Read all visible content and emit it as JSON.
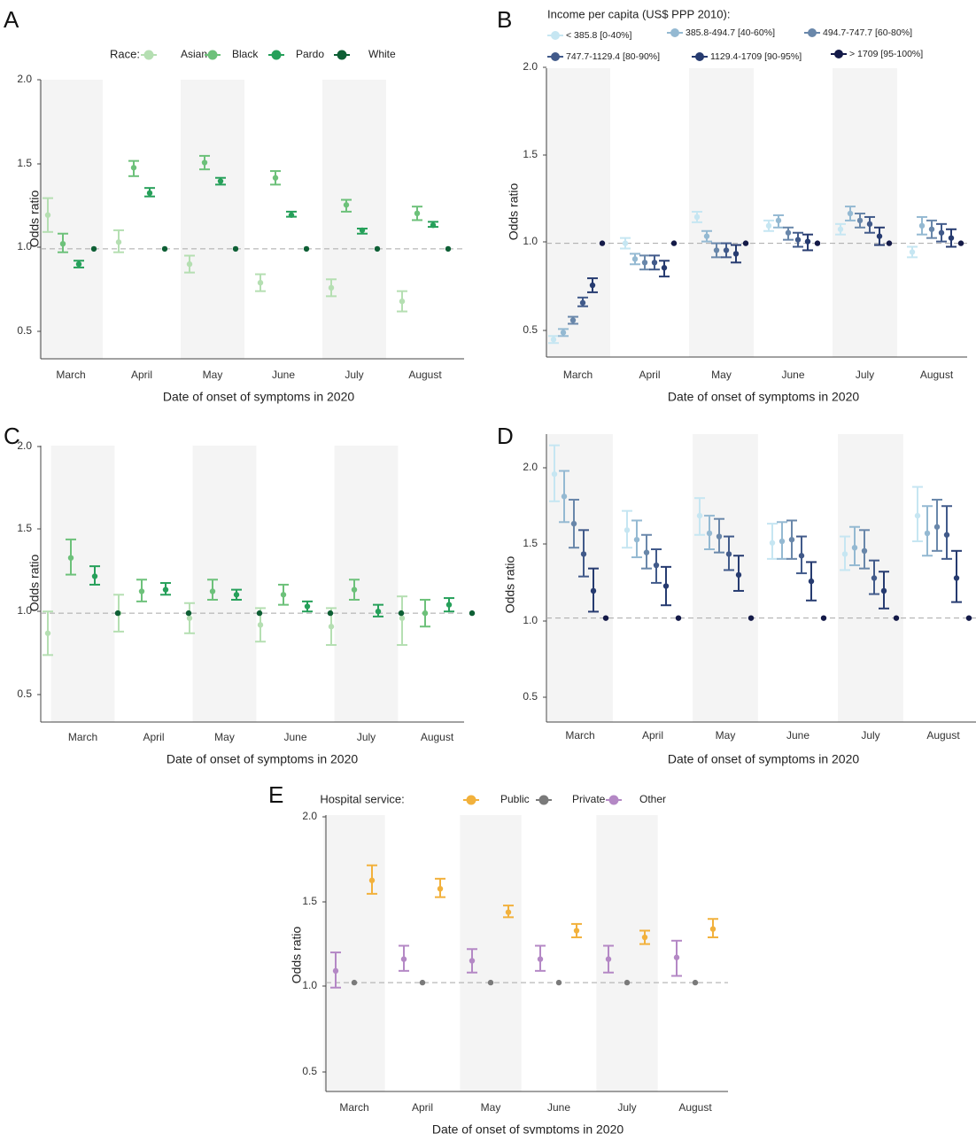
{
  "chart_data": [
    {
      "panel": "A",
      "type": "scatter",
      "xlabel": "Date of onset of symptoms in 2020",
      "ylabel": "Odds ratio",
      "categories": [
        "March",
        "April",
        "May",
        "June",
        "July",
        "August"
      ],
      "yticks": [
        "2.0",
        "1.5",
        "1.0",
        "0.5"
      ],
      "ylim": [
        0.35,
        2.0
      ],
      "reference_line": 1.0,
      "legend": {
        "title": "Race:",
        "position": "top"
      },
      "series": [
        {
          "name": "Asian",
          "color": "#b5dfb2",
          "values": [
            1.2,
            1.04,
            0.91,
            0.8,
            0.77,
            0.69
          ],
          "lower": [
            1.1,
            0.98,
            0.86,
            0.75,
            0.72,
            0.63
          ],
          "upper": [
            1.3,
            1.11,
            0.96,
            0.85,
            0.82,
            0.75
          ]
        },
        {
          "name": "Black",
          "color": "#6dc17a",
          "values": [
            1.03,
            1.48,
            1.51,
            1.42,
            1.26,
            1.21
          ],
          "lower": [
            0.98,
            1.43,
            1.47,
            1.38,
            1.22,
            1.17
          ],
          "upper": [
            1.09,
            1.52,
            1.55,
            1.46,
            1.29,
            1.25
          ]
        },
        {
          "name": "Pardo",
          "color": "#26a05a",
          "values": [
            0.91,
            1.33,
            1.4,
            1.2,
            1.11,
            1.14
          ],
          "lower": [
            0.89,
            1.31,
            1.38,
            1.19,
            1.09,
            1.13
          ],
          "upper": [
            0.93,
            1.36,
            1.42,
            1.22,
            1.12,
            1.16
          ]
        },
        {
          "name": "White",
          "color": "#0e5f35",
          "values": [
            1.0,
            1.0,
            1.0,
            1.0,
            1.0,
            1.0
          ],
          "lower": [
            1.0,
            1.0,
            1.0,
            1.0,
            1.0,
            1.0
          ],
          "upper": [
            1.0,
            1.0,
            1.0,
            1.0,
            1.0,
            1.0
          ]
        }
      ]
    },
    {
      "panel": "B",
      "type": "scatter",
      "xlabel": "Date of onset of symptoms in 2020",
      "ylabel": "Odds ratio",
      "categories": [
        "March",
        "April",
        "May",
        "June",
        "July",
        "August"
      ],
      "yticks": [
        "2.0",
        "1.5",
        "1.0",
        "0.5"
      ],
      "ylim": [
        0.35,
        2.0
      ],
      "reference_line": 1.0,
      "legend": {
        "title": "Income per capita (US$ PPP 2010):",
        "position": "top"
      },
      "series": [
        {
          "name": "< 385.8 [0-40%]",
          "color": "#c6e6f2",
          "values": [
            0.45,
            1.0,
            1.15,
            1.1,
            1.08,
            0.95
          ],
          "lower": [
            0.43,
            0.97,
            1.12,
            1.07,
            1.05,
            0.92
          ],
          "upper": [
            0.47,
            1.03,
            1.18,
            1.13,
            1.11,
            0.98
          ]
        },
        {
          "name": "385.8-494.7 [40-60%]",
          "color": "#94b9d2",
          "values": [
            0.49,
            0.91,
            1.04,
            1.13,
            1.17,
            1.1
          ],
          "lower": [
            0.47,
            0.88,
            1.01,
            1.09,
            1.13,
            1.05
          ],
          "upper": [
            0.51,
            0.94,
            1.07,
            1.16,
            1.21,
            1.15
          ]
        },
        {
          "name": "494.7-747.7 [60-80%]",
          "color": "#6987aa",
          "values": [
            0.56,
            0.89,
            0.96,
            1.06,
            1.13,
            1.08
          ],
          "lower": [
            0.54,
            0.85,
            0.92,
            1.02,
            1.09,
            1.03
          ],
          "upper": [
            0.58,
            0.93,
            1.0,
            1.09,
            1.17,
            1.13
          ]
        },
        {
          "name": "747.7-1129.4 [80-90%]",
          "color": "#415a8a",
          "values": [
            0.66,
            0.89,
            0.96,
            1.02,
            1.11,
            1.06
          ],
          "lower": [
            0.64,
            0.85,
            0.92,
            0.98,
            1.06,
            1.01
          ],
          "upper": [
            0.69,
            0.93,
            1.0,
            1.06,
            1.15,
            1.11
          ]
        },
        {
          "name": "1129.4-1709 [90-95%]",
          "color": "#263b70",
          "values": [
            0.76,
            0.86,
            0.94,
            1.01,
            1.04,
            1.03
          ],
          "lower": [
            0.72,
            0.81,
            0.89,
            0.96,
            0.99,
            0.98
          ],
          "upper": [
            0.8,
            0.9,
            0.99,
            1.05,
            1.09,
            1.08
          ]
        },
        {
          "name": "> 1709 [95-100%]",
          "color": "#141a48",
          "values": [
            1.0,
            1.0,
            1.0,
            1.0,
            1.0,
            1.0
          ],
          "lower": [
            1.0,
            1.0,
            1.0,
            1.0,
            1.0,
            1.0
          ],
          "upper": [
            1.0,
            1.0,
            1.0,
            1.0,
            1.0,
            1.0
          ]
        }
      ]
    },
    {
      "panel": "C",
      "type": "scatter",
      "xlabel": "Date of onset of symptoms in 2020",
      "ylabel": "Odds ratio",
      "categories": [
        "March",
        "April",
        "May",
        "June",
        "July",
        "August"
      ],
      "yticks": [
        "2.0",
        "1.5",
        "1.0",
        "0.5"
      ],
      "ylim": [
        0.35,
        2.0
      ],
      "reference_line": 1.0,
      "series": [
        {
          "name": "Asian",
          "color": "#b5dfb2",
          "values": [
            0.88,
            1.0,
            0.97,
            0.93,
            0.92,
            0.97
          ],
          "lower": [
            0.75,
            0.89,
            0.88,
            0.83,
            0.81,
            0.81
          ],
          "upper": [
            1.01,
            1.11,
            1.06,
            1.03,
            1.03,
            1.1
          ]
        },
        {
          "name": "Black",
          "color": "#6dc17a",
          "values": [
            1.33,
            1.13,
            1.13,
            1.11,
            1.14,
            1.0
          ],
          "lower": [
            1.23,
            1.07,
            1.08,
            1.05,
            1.08,
            0.92
          ],
          "upper": [
            1.44,
            1.2,
            1.2,
            1.17,
            1.2,
            1.08
          ]
        },
        {
          "name": "Pardo",
          "color": "#26a05a",
          "values": [
            1.22,
            1.14,
            1.11,
            1.04,
            1.01,
            1.05
          ],
          "lower": [
            1.17,
            1.11,
            1.08,
            1.01,
            0.98,
            1.01
          ],
          "upper": [
            1.28,
            1.18,
            1.14,
            1.07,
            1.05,
            1.09
          ]
        },
        {
          "name": "White",
          "color": "#0e5f35",
          "values": [
            1.0,
            1.0,
            1.0,
            1.0,
            1.0,
            1.0
          ],
          "lower": [
            1.0,
            1.0,
            1.0,
            1.0,
            1.0,
            1.0
          ],
          "upper": [
            1.0,
            1.0,
            1.0,
            1.0,
            1.0,
            1.0
          ]
        }
      ]
    },
    {
      "panel": "D",
      "type": "scatter",
      "xlabel": "Date of onset of symptoms in 2020",
      "ylabel": "Odds ratio",
      "categories": [
        "March",
        "April",
        "May",
        "June",
        "July",
        "August"
      ],
      "yticks": [
        "2.0",
        "1.5",
        "1.0",
        "0.5"
      ],
      "ylim": [
        0.35,
        2.15
      ],
      "reference_line": 1.0,
      "series": [
        {
          "name": "< 385.8 [0-40%]",
          "color": "#c6e6f2",
          "values": [
            1.9,
            1.55,
            1.64,
            1.47,
            1.4,
            1.64
          ],
          "lower": [
            1.73,
            1.44,
            1.52,
            1.37,
            1.3,
            1.48
          ],
          "upper": [
            2.08,
            1.67,
            1.75,
            1.59,
            1.51,
            1.82
          ]
        },
        {
          "name": "385.8-494.7 [40-60%]",
          "color": "#94b9d2",
          "values": [
            1.76,
            1.49,
            1.53,
            1.48,
            1.44,
            1.53
          ],
          "lower": [
            1.6,
            1.38,
            1.43,
            1.37,
            1.33,
            1.39
          ],
          "upper": [
            1.92,
            1.61,
            1.64,
            1.6,
            1.57,
            1.7
          ]
        },
        {
          "name": "494.7-747.7 [60-80%]",
          "color": "#6987aa",
          "values": [
            1.59,
            1.41,
            1.51,
            1.49,
            1.42,
            1.57
          ],
          "lower": [
            1.44,
            1.31,
            1.41,
            1.37,
            1.31,
            1.42
          ],
          "upper": [
            1.74,
            1.52,
            1.62,
            1.61,
            1.55,
            1.74
          ]
        },
        {
          "name": "747.7-1129.4 [80-90%]",
          "color": "#415a8a",
          "values": [
            1.4,
            1.33,
            1.4,
            1.39,
            1.25,
            1.52
          ],
          "lower": [
            1.26,
            1.22,
            1.3,
            1.28,
            1.15,
            1.37
          ],
          "upper": [
            1.55,
            1.43,
            1.51,
            1.51,
            1.36,
            1.7
          ]
        },
        {
          "name": "1129.4-1709 [90-95%]",
          "color": "#263b70",
          "values": [
            1.17,
            1.2,
            1.27,
            1.23,
            1.17,
            1.25
          ],
          "lower": [
            1.04,
            1.08,
            1.17,
            1.11,
            1.06,
            1.1
          ],
          "upper": [
            1.31,
            1.32,
            1.39,
            1.35,
            1.29,
            1.42
          ]
        },
        {
          "name": "> 1709 [95-100%]",
          "color": "#141a48",
          "values": [
            1.0,
            1.0,
            1.0,
            1.0,
            1.0,
            1.0
          ],
          "lower": [
            1.0,
            1.0,
            1.0,
            1.0,
            1.0,
            1.0
          ],
          "upper": [
            1.0,
            1.0,
            1.0,
            1.0,
            1.0,
            1.0
          ]
        }
      ]
    },
    {
      "panel": "E",
      "type": "scatter",
      "xlabel": "Date of onset of symptoms in 2020",
      "ylabel": "Odds ratio",
      "categories": [
        "March",
        "April",
        "May",
        "June",
        "July",
        "August"
      ],
      "yticks": [
        "2.0",
        "1.5",
        "1.0",
        "0.5"
      ],
      "ylim": [
        0.35,
        2.0
      ],
      "reference_line": 1.0,
      "legend": {
        "title": "Hospital service:",
        "position": "top"
      },
      "series": [
        {
          "name": "Public",
          "color": "#f2b13c",
          "values": [
            1.61,
            1.56,
            1.42,
            1.31,
            1.27,
            1.32
          ],
          "lower": [
            1.53,
            1.51,
            1.39,
            1.27,
            1.23,
            1.27
          ],
          "upper": [
            1.7,
            1.62,
            1.46,
            1.35,
            1.31,
            1.38
          ]
        },
        {
          "name": "Private",
          "color": "#7a7a7a",
          "values": [
            1.0,
            1.0,
            1.0,
            1.0,
            1.0,
            1.0
          ],
          "lower": [
            1.0,
            1.0,
            1.0,
            1.0,
            1.0,
            1.0
          ],
          "upper": [
            1.0,
            1.0,
            1.0,
            1.0,
            1.0,
            1.0
          ]
        },
        {
          "name": "Other",
          "color": "#b488c5",
          "values": [
            1.07,
            1.14,
            1.13,
            1.14,
            1.14,
            1.15
          ],
          "lower": [
            0.97,
            1.07,
            1.06,
            1.07,
            1.06,
            1.04
          ],
          "upper": [
            1.18,
            1.22,
            1.2,
            1.22,
            1.22,
            1.25
          ]
        }
      ]
    }
  ]
}
